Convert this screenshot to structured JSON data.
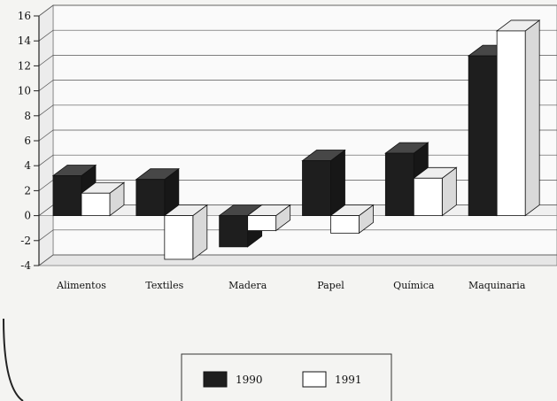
{
  "chart_data": {
    "type": "bar",
    "style": "3d-clustered",
    "categories": [
      "Alimentos",
      "Textiles",
      "Madera",
      "Papel",
      "Química",
      "Maquinaria"
    ],
    "series": [
      {
        "name": "1990",
        "values": [
          3.2,
          2.9,
          -2.5,
          4.4,
          5.0,
          12.8
        ],
        "color": "#1e1e1e"
      },
      {
        "name": "1991",
        "values": [
          1.8,
          -3.5,
          -1.2,
          -1.4,
          3.0,
          14.8
        ],
        "color": "#ffffff"
      }
    ],
    "ylim": [
      -4,
      16
    ],
    "yticks": [
      -4,
      -2,
      0,
      2,
      4,
      6,
      8,
      10,
      12,
      14,
      16
    ],
    "grid": true,
    "legend": "bottom-center",
    "background": "#f4f4f2"
  }
}
